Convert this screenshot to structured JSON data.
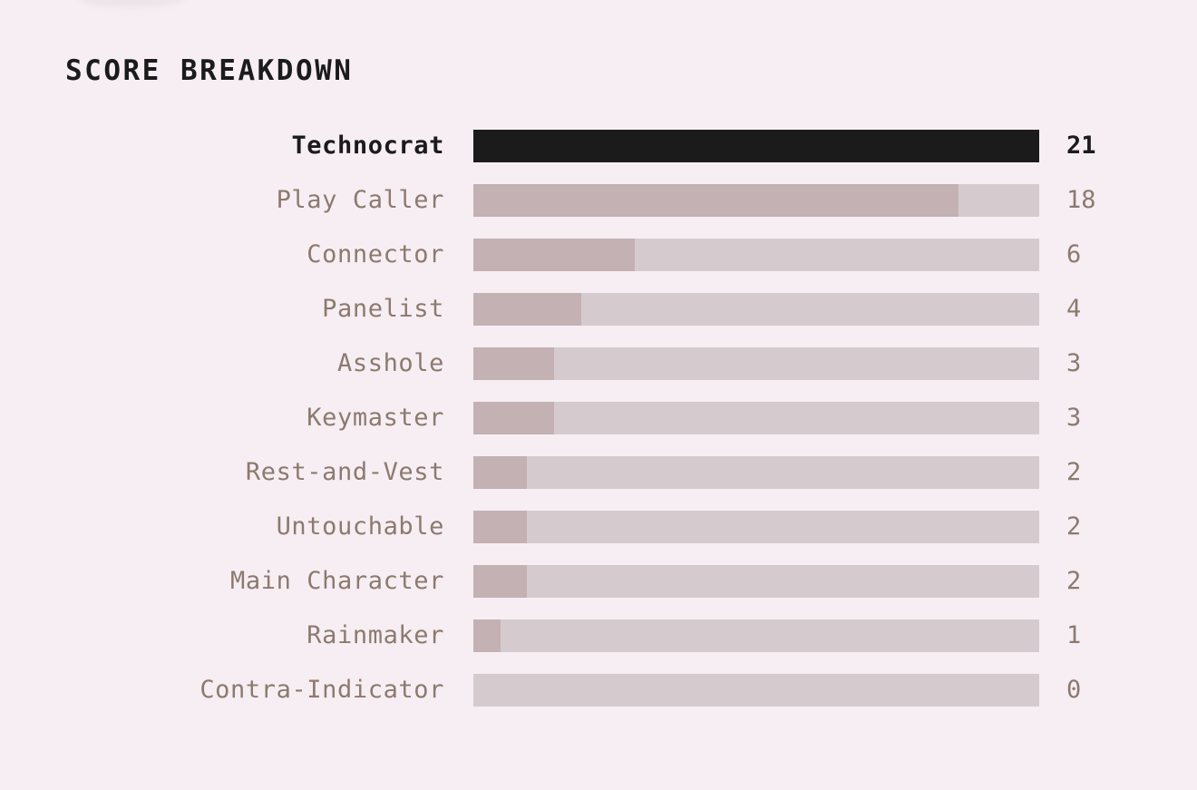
{
  "section": {
    "title": "SCORE BREAKDOWN"
  },
  "colors": {
    "background": "#f7eef3",
    "top_bar": "#1b1b1b",
    "bar_fill": "#c3b1b3",
    "bar_track": "#d5cbcf",
    "muted_text": "#8c7a6f",
    "strong_text": "#1b1b1b"
  },
  "chart_data": {
    "type": "bar",
    "orientation": "horizontal",
    "title": "SCORE BREAKDOWN",
    "categories": [
      "Technocrat",
      "Play Caller",
      "Connector",
      "Panelist",
      "Asshole",
      "Keymaster",
      "Rest-and-Vest",
      "Untouchable",
      "Main Character",
      "Rainmaker",
      "Contra-Indicator"
    ],
    "values": [
      21,
      18,
      6,
      4,
      3,
      3,
      2,
      2,
      2,
      1,
      0
    ],
    "xlim": [
      0,
      21
    ],
    "highlighted": "Technocrat",
    "value_labels": "right",
    "grid": false
  }
}
